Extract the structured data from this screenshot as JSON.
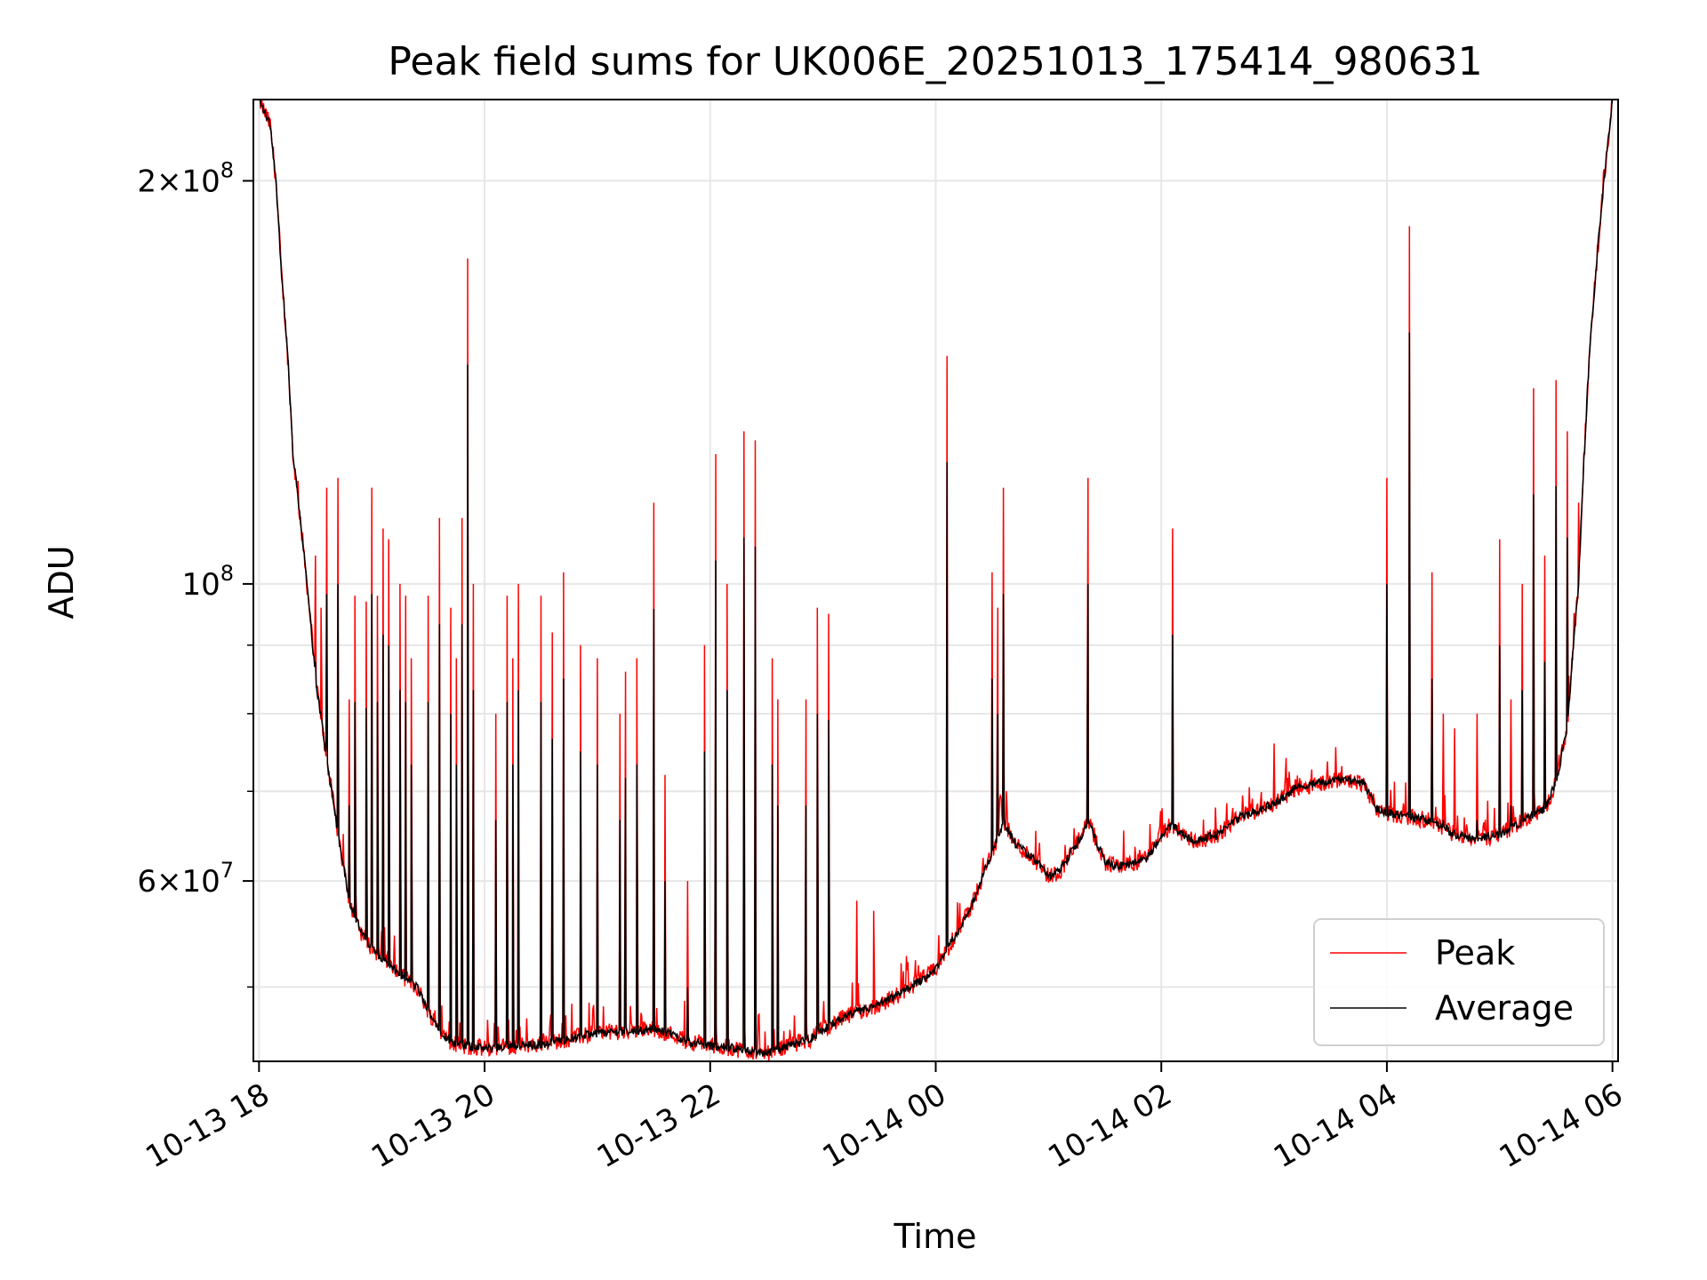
{
  "chart_data": {
    "type": "line",
    "title": "Peak field sums for UK006E_20251013_175414_980631",
    "xlabel": "Time",
    "ylabel": "ADU",
    "y_scale": "log",
    "ylim": [
      44000000,
      230000000
    ],
    "xlim": [
      -0.05,
      12.05
    ],
    "grid": true,
    "legend_position": "lower right",
    "x_ticks": [
      {
        "value": 0,
        "label": "10-13 18"
      },
      {
        "value": 2,
        "label": "10-13 20"
      },
      {
        "value": 4,
        "label": "10-13 22"
      },
      {
        "value": 6,
        "label": "10-14 00"
      },
      {
        "value": 8,
        "label": "10-14 02"
      },
      {
        "value": 10,
        "label": "10-14 04"
      },
      {
        "value": 12,
        "label": "10-14 06"
      }
    ],
    "y_ticks": [
      {
        "value": 60000000,
        "base": "6",
        "exp": "7"
      },
      {
        "value": 100000000,
        "base": "",
        "exp": "8"
      },
      {
        "value": 200000000,
        "base": "2",
        "exp": "8"
      }
    ],
    "y_minor_ticks": [
      50000000,
      70000000,
      80000000,
      90000000
    ],
    "series": [
      {
        "name": "Peak",
        "color": "#ff0000",
        "baseline": [
          [
            0.0,
            230
          ],
          [
            0.1,
            220
          ],
          [
            0.15,
            200
          ],
          [
            0.2,
            170
          ],
          [
            0.25,
            150
          ],
          [
            0.3,
            125
          ],
          [
            0.4,
            105
          ],
          [
            0.5,
            85
          ],
          [
            0.6,
            74
          ],
          [
            0.7,
            65
          ],
          [
            0.8,
            58
          ],
          [
            0.9,
            55
          ],
          [
            1.0,
            53.5
          ],
          [
            1.2,
            51.5
          ],
          [
            1.4,
            50
          ],
          [
            1.5,
            48
          ],
          [
            1.6,
            46.5
          ],
          [
            1.7,
            45.5
          ],
          [
            1.8,
            45.2
          ],
          [
            2.0,
            45
          ],
          [
            2.5,
            45.3
          ],
          [
            3.0,
            46.2
          ],
          [
            3.5,
            46.5
          ],
          [
            3.7,
            46
          ],
          [
            3.8,
            45.5
          ],
          [
            4.0,
            45.2
          ],
          [
            4.2,
            45
          ],
          [
            4.5,
            44.6
          ],
          [
            4.7,
            45.2
          ],
          [
            4.9,
            45.8
          ],
          [
            5.0,
            46.5
          ],
          [
            5.2,
            47.5
          ],
          [
            5.5,
            48.5
          ],
          [
            5.7,
            49.5
          ],
          [
            6.0,
            51.5
          ],
          [
            6.3,
            57
          ],
          [
            6.5,
            63
          ],
          [
            6.6,
            66.5
          ],
          [
            6.7,
            64
          ],
          [
            6.9,
            62
          ],
          [
            7.0,
            60.5
          ],
          [
            7.1,
            61
          ],
          [
            7.2,
            63
          ],
          [
            7.3,
            65
          ],
          [
            7.35,
            66.5
          ],
          [
            7.4,
            65
          ],
          [
            7.5,
            62
          ],
          [
            7.6,
            61.5
          ],
          [
            7.8,
            62
          ],
          [
            7.9,
            62.8
          ],
          [
            8.0,
            65
          ],
          [
            8.1,
            66
          ],
          [
            8.2,
            65
          ],
          [
            8.3,
            64.2
          ],
          [
            8.5,
            65
          ],
          [
            8.7,
            67
          ],
          [
            9.0,
            68.5
          ],
          [
            9.2,
            70.5
          ],
          [
            9.4,
            71
          ],
          [
            9.6,
            71.5
          ],
          [
            9.8,
            71
          ],
          [
            9.9,
            68
          ],
          [
            10.0,
            67.5
          ],
          [
            10.2,
            67
          ],
          [
            10.4,
            66.5
          ],
          [
            10.6,
            65
          ],
          [
            10.8,
            64.5
          ],
          [
            11.0,
            65
          ],
          [
            11.2,
            66.5
          ],
          [
            11.4,
            68
          ],
          [
            11.5,
            71
          ],
          [
            11.6,
            78
          ],
          [
            11.7,
            100
          ],
          [
            11.8,
            150
          ],
          [
            11.9,
            190
          ],
          [
            12.0,
            230
          ]
        ],
        "spikes": [
          [
            0.5,
            105
          ],
          [
            0.55,
            96
          ],
          [
            0.6,
            118
          ],
          [
            0.7,
            120
          ],
          [
            0.8,
            82
          ],
          [
            0.85,
            98
          ],
          [
            0.95,
            97
          ],
          [
            1.0,
            118
          ],
          [
            1.05,
            98
          ],
          [
            1.1,
            110
          ],
          [
            1.15,
            108
          ],
          [
            1.25,
            100
          ],
          [
            1.3,
            98
          ],
          [
            1.35,
            88
          ],
          [
            1.5,
            98
          ],
          [
            1.6,
            112
          ],
          [
            1.7,
            96
          ],
          [
            1.75,
            88
          ],
          [
            1.8,
            112
          ],
          [
            1.85,
            175
          ],
          [
            1.9,
            100
          ],
          [
            2.1,
            80
          ],
          [
            2.2,
            98
          ],
          [
            2.25,
            88
          ],
          [
            2.3,
            100
          ],
          [
            2.5,
            98
          ],
          [
            2.6,
            92
          ],
          [
            2.7,
            102
          ],
          [
            2.85,
            90
          ],
          [
            3.0,
            88
          ],
          [
            3.2,
            80
          ],
          [
            3.25,
            86
          ],
          [
            3.35,
            88
          ],
          [
            3.5,
            115
          ],
          [
            3.6,
            72
          ],
          [
            3.8,
            60
          ],
          [
            3.95,
            90
          ],
          [
            4.05,
            125
          ],
          [
            4.15,
            100
          ],
          [
            4.3,
            130
          ],
          [
            4.4,
            128
          ],
          [
            4.55,
            88
          ],
          [
            4.6,
            82
          ],
          [
            4.85,
            82
          ],
          [
            4.95,
            96
          ],
          [
            5.05,
            95
          ],
          [
            5.3,
            58
          ],
          [
            5.45,
            57
          ],
          [
            6.1,
            100
          ],
          [
            6.1,
            148
          ],
          [
            6.5,
            102
          ],
          [
            6.55,
            96
          ],
          [
            6.6,
            118
          ],
          [
            7.35,
            120
          ],
          [
            8.1,
            110
          ],
          [
            9.0,
            76
          ],
          [
            9.1,
            72
          ],
          [
            10.0,
            120
          ],
          [
            10.2,
            185
          ],
          [
            10.4,
            102
          ],
          [
            10.5,
            80
          ],
          [
            10.6,
            78
          ],
          [
            10.8,
            80
          ],
          [
            11.0,
            108
          ],
          [
            11.1,
            82
          ],
          [
            11.2,
            100
          ],
          [
            11.3,
            140
          ],
          [
            11.4,
            105
          ],
          [
            11.5,
            142
          ],
          [
            11.6,
            130
          ],
          [
            11.7,
            115
          ]
        ]
      },
      {
        "name": "Average",
        "color": "#000000",
        "offset": 0.98
      }
    ]
  }
}
